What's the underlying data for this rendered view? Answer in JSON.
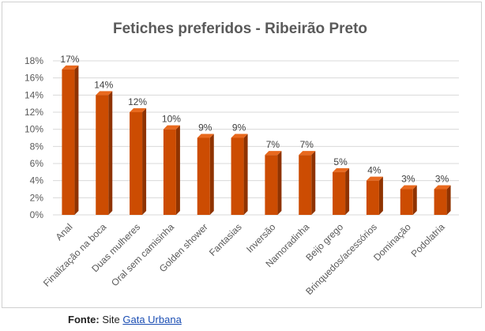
{
  "chart_data": {
    "type": "bar",
    "title": "Fetiches preferidos - Ribeirão Preto",
    "categories": [
      "Anal",
      "Finalização na boca",
      "Duas mulheres",
      "Oral sem camisinha",
      "Golden shower",
      "Fantasias",
      "Inversão",
      "Namoradinha",
      "Beijo grego",
      "Brinquedos/acessórios",
      "Dominação",
      "Podolatria"
    ],
    "values": [
      17,
      14,
      12,
      10,
      9,
      9,
      7,
      7,
      5,
      4,
      3,
      3
    ],
    "data_labels": [
      "17%",
      "14%",
      "12%",
      "10%",
      "9%",
      "9%",
      "7%",
      "7%",
      "5%",
      "4%",
      "3%",
      "3%"
    ],
    "yticks": [
      "0%",
      "2%",
      "4%",
      "6%",
      "8%",
      "10%",
      "12%",
      "14%",
      "16%",
      "18%"
    ],
    "ylim": [
      0,
      18
    ],
    "grid": true,
    "bar_color": "#cc4c02",
    "bar_side_color": "#8f3300",
    "bar_top_color": "#e8691e"
  },
  "source": {
    "label": "Fonte:",
    "text": "Site",
    "link_text": "Gata Urbana"
  }
}
